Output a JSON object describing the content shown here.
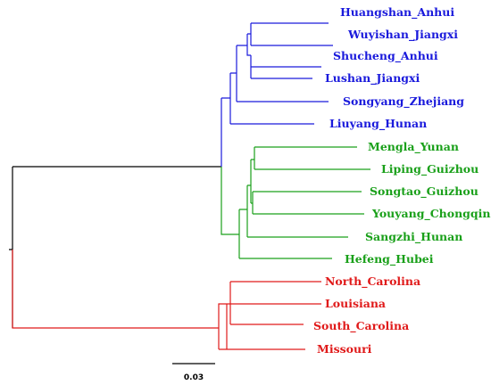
{
  "colors": {
    "root": "#000000",
    "blue_clade": "#1a1adc",
    "green_clade": "#1aa01a",
    "red_clade": "#e01a1a"
  },
  "leaves": {
    "huangshan": "Huangshan_Anhui",
    "wuyishan": "Wuyishan_Jiangxi",
    "shucheng": "Shucheng_Anhui",
    "lushan": "Lushan_Jiangxi",
    "songyang": "Songyang_Zhejiang",
    "liuyang": "Liuyang_Hunan",
    "mengla": "Mengla_Yunan",
    "liping": "Liping_Guizhou",
    "songtao": "Songtao_Guizhou",
    "youyang": "Youyang_Chongqing",
    "sangzhi": "Sangzhi_Hunan",
    "hefeng": "Hefeng_Hubei",
    "north_carolina": "North_Carolina",
    "louisiana": "Louisiana",
    "south_carolina": "South_Carolina",
    "missouri": "Missouri"
  },
  "scale_bar": {
    "label": "0.03"
  }
}
